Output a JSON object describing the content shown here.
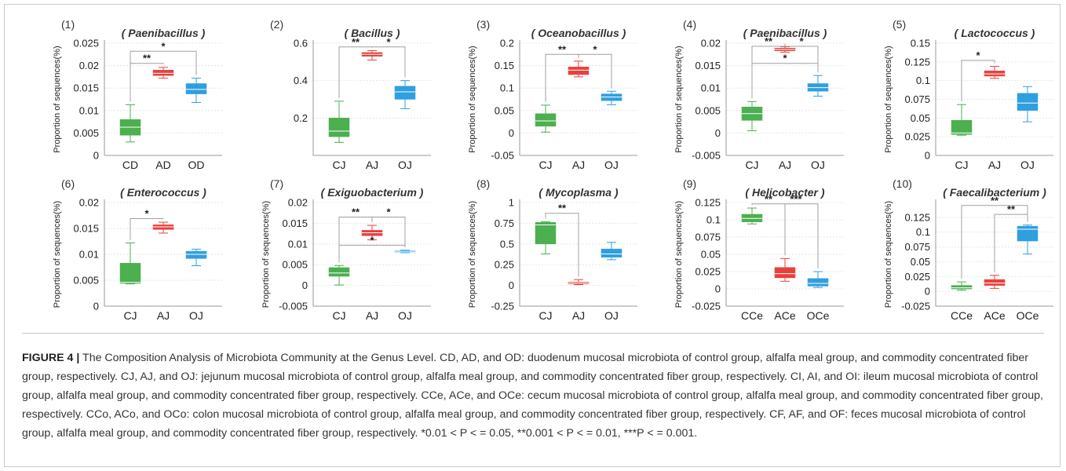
{
  "figure": {
    "caption_label": "FIGURE 4 |",
    "caption_text": " The Composition Analysis of Microbiota Community at the Genus Level. CD, AD, and OD: duodenum mucosal microbiota of control group, alfalfa meal group, and commodity concentrated fiber group, respectively. CJ, AJ, and OJ: jejunum mucosal microbiota of control group, alfalfa meal group, and commodity concentrated fiber group, respectively. CI, AI, and OI: ileum mucosal microbiota of control group, alfalfa meal group, and commodity concentrated fiber group, respectively. CCe, ACe, and OCe: cecum mucosal microbiota of control group, alfalfa meal group, and commodity concentrated fiber group, respectively. CCo, ACo, and OCo: colon mucosal microbiota of control group, alfalfa meal group, and commodity concentrated fiber group, respectively. CF, AF, and OF: feces mucosal microbiota of control group, alfalfa meal group, and commodity concentrated fiber group, respectively. *0.01 < P < = 0.05, **0.001 < P < = 0.01, ***P < = 0.001."
  },
  "colors": {
    "C": "#4caf50",
    "A": "#e8413c",
    "O": "#2f9fe0"
  },
  "chart_data": [
    {
      "type": "box",
      "panel": "(1)",
      "title": "( Paenibacillus )",
      "ylabel": "Proportion of sequences(%)",
      "ylim": [
        0,
        0.025
      ],
      "yticks": [
        0,
        0.005,
        0.01,
        0.015,
        0.02,
        0.025
      ],
      "ytick_labels": [
        "0",
        "0.005",
        "0.01",
        "0.015",
        "0.02",
        "0.025"
      ],
      "categories": [
        "CD",
        "AD",
        "OD"
      ],
      "boxes": [
        [
          0.003,
          0.0045,
          0.0063,
          0.008,
          0.0113
        ],
        [
          0.0172,
          0.0178,
          0.0183,
          0.019,
          0.0196
        ],
        [
          0.0118,
          0.0137,
          0.0147,
          0.016,
          0.0172
        ]
      ],
      "sig": [
        {
          "from": 0,
          "to": 1,
          "y": 0.0205,
          "label": "**"
        },
        {
          "from": 0,
          "to": 2,
          "y": 0.0232,
          "label": "*"
        }
      ]
    },
    {
      "type": "box",
      "panel": "(2)",
      "title": "( Bacillus )",
      "ylabel": "",
      "ylim": [
        0,
        0.6
      ],
      "yticks": [
        0.2,
        0.4,
        0.6
      ],
      "ytick_labels": [
        "0.2",
        "0.4",
        "0.6"
      ],
      "categories": [
        "CJ",
        "AJ",
        "OJ"
      ],
      "boxes": [
        [
          0.07,
          0.1,
          0.13,
          0.2,
          0.29
        ],
        [
          0.51,
          0.53,
          0.54,
          0.55,
          0.56
        ],
        [
          0.25,
          0.3,
          0.34,
          0.37,
          0.4
        ]
      ],
      "sig": [
        {
          "from": 0,
          "to": 1,
          "y": 0.58,
          "label": "**"
        },
        {
          "from": 1,
          "to": 2,
          "y": 0.58,
          "label": "*"
        }
      ]
    },
    {
      "type": "box",
      "panel": "(3)",
      "title": "( Oceanobacillus )",
      "ylabel": "Proportion of sequences(%)",
      "ylim": [
        -0.05,
        0.2
      ],
      "yticks": [
        -0.05,
        0,
        0.05,
        0.1,
        0.15,
        0.2
      ],
      "ytick_labels": [
        "-0.05",
        "0",
        "0.05",
        "0.1",
        "0.15",
        "0.2"
      ],
      "categories": [
        "CJ",
        "AJ",
        "OJ"
      ],
      "boxes": [
        [
          0.002,
          0.015,
          0.027,
          0.043,
          0.062
        ],
        [
          0.125,
          0.13,
          0.14,
          0.147,
          0.16
        ],
        [
          0.063,
          0.072,
          0.08,
          0.087,
          0.093
        ]
      ],
      "sig": [
        {
          "from": 0,
          "to": 1,
          "y": 0.175,
          "label": "**"
        },
        {
          "from": 1,
          "to": 2,
          "y": 0.175,
          "label": "*"
        }
      ]
    },
    {
      "type": "box",
      "panel": "(4)",
      "title": "( Paenibacillus )",
      "ylabel": "Proportion of sequences(%)",
      "ylim": [
        -0.005,
        0.02
      ],
      "yticks": [
        -0.005,
        0,
        0.005,
        0.01,
        0.015,
        0.02
      ],
      "ytick_labels": [
        "-0.005",
        "0",
        "0.005",
        "0.01",
        "0.015",
        "0.02"
      ],
      "categories": [
        "CJ",
        "AJ",
        "OJ"
      ],
      "boxes": [
        [
          0.0005,
          0.0028,
          0.0043,
          0.0058,
          0.007
        ],
        [
          0.018,
          0.0183,
          0.0186,
          0.0189,
          0.0192
        ],
        [
          0.0082,
          0.0093,
          0.0101,
          0.011,
          0.0128
        ]
      ],
      "sig": [
        {
          "from": 0,
          "to": 1,
          "y": 0.0193,
          "label": "**"
        },
        {
          "from": 1,
          "to": 2,
          "y": 0.0193,
          "label": "*"
        },
        {
          "from": 0,
          "to": 2,
          "y": 0.0155,
          "label": "*",
          "label_at": "center"
        }
      ]
    },
    {
      "type": "box",
      "panel": "(5)",
      "title": "( Lactococcus )",
      "ylabel": "Proportion of sequences(%)",
      "ylim": [
        0,
        0.15
      ],
      "yticks": [
        0,
        0.025,
        0.05,
        0.075,
        0.1,
        0.125,
        0.15
      ],
      "ytick_labels": [
        "0",
        "0.025",
        "0.05",
        "0.075",
        "0.1",
        "0.125",
        "0.15"
      ],
      "categories": [
        "CJ",
        "AJ",
        "OJ"
      ],
      "boxes": [
        [
          0.027,
          0.028,
          0.03,
          0.047,
          0.068
        ],
        [
          0.103,
          0.106,
          0.109,
          0.113,
          0.119
        ],
        [
          0.045,
          0.06,
          0.07,
          0.083,
          0.092
        ]
      ],
      "sig": [
        {
          "from": 0,
          "to": 1,
          "y": 0.127,
          "label": "*"
        }
      ]
    },
    {
      "type": "box",
      "panel": "(6)",
      "title": "( Enterococcus )",
      "ylabel": "Proportion of sequences(%)",
      "ylim": [
        0,
        0.02
      ],
      "yticks": [
        0,
        0.005,
        0.01,
        0.015,
        0.02
      ],
      "ytick_labels": [
        "0",
        "0.005",
        "0.01",
        "0.015",
        "0.02"
      ],
      "categories": [
        "CJ",
        "AJ",
        "OJ"
      ],
      "boxes": [
        [
          0.0043,
          0.0044,
          0.0046,
          0.0083,
          0.0122
        ],
        [
          0.0141,
          0.0148,
          0.0153,
          0.0157,
          0.0162
        ],
        [
          0.0078,
          0.0092,
          0.01,
          0.0106,
          0.011
        ]
      ],
      "sig": [
        {
          "from": 0,
          "to": 1,
          "y": 0.0169,
          "label": "*"
        }
      ]
    },
    {
      "type": "box",
      "panel": "(7)",
      "title": "( Exiguobacterium )",
      "ylabel": "Proportion of sequences(%)",
      "ylim": [
        -0.005,
        0.02
      ],
      "yticks": [
        -0.005,
        0,
        0.005,
        0.01,
        0.015,
        0.02
      ],
      "ytick_labels": [
        "-0.005",
        "0",
        "0.005",
        "0.01",
        "0.015",
        "0.02"
      ],
      "categories": [
        "CJ",
        "AJ",
        "OJ"
      ],
      "boxes": [
        [
          0.0001,
          0.0022,
          0.003,
          0.0043,
          0.0048
        ],
        [
          0.011,
          0.012,
          0.0127,
          0.0133,
          0.0145
        ],
        [
          0.0079,
          0.008,
          0.0081,
          0.0083,
          0.0085
        ]
      ],
      "sig": [
        {
          "from": 0,
          "to": 1,
          "y": 0.0165,
          "label": "**"
        },
        {
          "from": 1,
          "to": 2,
          "y": 0.0165,
          "label": "*"
        },
        {
          "from": 0,
          "to": 2,
          "y": 0.0097,
          "label": "*",
          "label_at": "center"
        }
      ]
    },
    {
      "type": "box",
      "panel": "(8)",
      "title": "( Mycoplasma )",
      "ylabel": "Proportion of sequences(%)",
      "ylim": [
        -0.25,
        1
      ],
      "yticks": [
        -0.25,
        0,
        0.25,
        0.5,
        0.75,
        1
      ],
      "ytick_labels": [
        "-0.25",
        "0",
        "0.25",
        "0.5",
        "0.75",
        "1"
      ],
      "categories": [
        "CJ",
        "AJ",
        "OJ"
      ],
      "boxes": [
        [
          0.38,
          0.5,
          0.73,
          0.76,
          0.77
        ],
        [
          0.01,
          0.02,
          0.03,
          0.04,
          0.07
        ],
        [
          0.31,
          0.34,
          0.38,
          0.44,
          0.52
        ]
      ],
      "sig": [
        {
          "from": 0,
          "to": 1,
          "y": 0.87,
          "label": "**"
        }
      ]
    },
    {
      "type": "box",
      "panel": "(9)",
      "title": "( Helicobacter )",
      "ylabel": "Proportion of sequences(%)",
      "ylim": [
        -0.025,
        0.125
      ],
      "yticks": [
        -0.025,
        0,
        0.025,
        0.05,
        0.075,
        0.1,
        0.125
      ],
      "ytick_labels": [
        "-0.025",
        "0",
        "0.025",
        "0.05",
        "0.075",
        "0.1",
        "0.125"
      ],
      "categories": [
        "CCe",
        "ACe",
        "OCe"
      ],
      "boxes": [
        [
          0.094,
          0.097,
          0.102,
          0.108,
          0.117
        ],
        [
          0.011,
          0.016,
          0.022,
          0.031,
          0.044
        ],
        [
          0.002,
          0.004,
          0.008,
          0.015,
          0.025
        ]
      ],
      "sig": [
        {
          "from": 0,
          "to": 1,
          "y": 0.123,
          "label": "**",
          "label_at": "center"
        },
        {
          "from": 1,
          "to": 2,
          "y": 0.123,
          "label": "***",
          "label_at": "start"
        }
      ]
    },
    {
      "type": "box",
      "panel": "(10)",
      "title": "( Faecalibacterium )",
      "ylabel": "Proportion of sequences(%)",
      "ylim": [
        -0.025,
        0.15
      ],
      "yticks": [
        -0.025,
        0,
        0.025,
        0.05,
        0.075,
        0.1,
        0.125
      ],
      "ytick_labels": [
        "-0.025",
        "0",
        "0.025",
        "0.05",
        "0.075",
        "0.1",
        "0.125"
      ],
      "categories": [
        "CCe",
        "ACe",
        "OCe"
      ],
      "boxes": [
        [
          0.002,
          0.004,
          0.006,
          0.01,
          0.016
        ],
        [
          0.005,
          0.01,
          0.014,
          0.02,
          0.027
        ],
        [
          0.063,
          0.085,
          0.105,
          0.11,
          0.112
        ]
      ],
      "sig": [
        {
          "from": 0,
          "to": 2,
          "y": 0.145,
          "label": "**"
        },
        {
          "from": 1,
          "to": 2,
          "y": 0.13,
          "label": "**"
        }
      ]
    }
  ]
}
